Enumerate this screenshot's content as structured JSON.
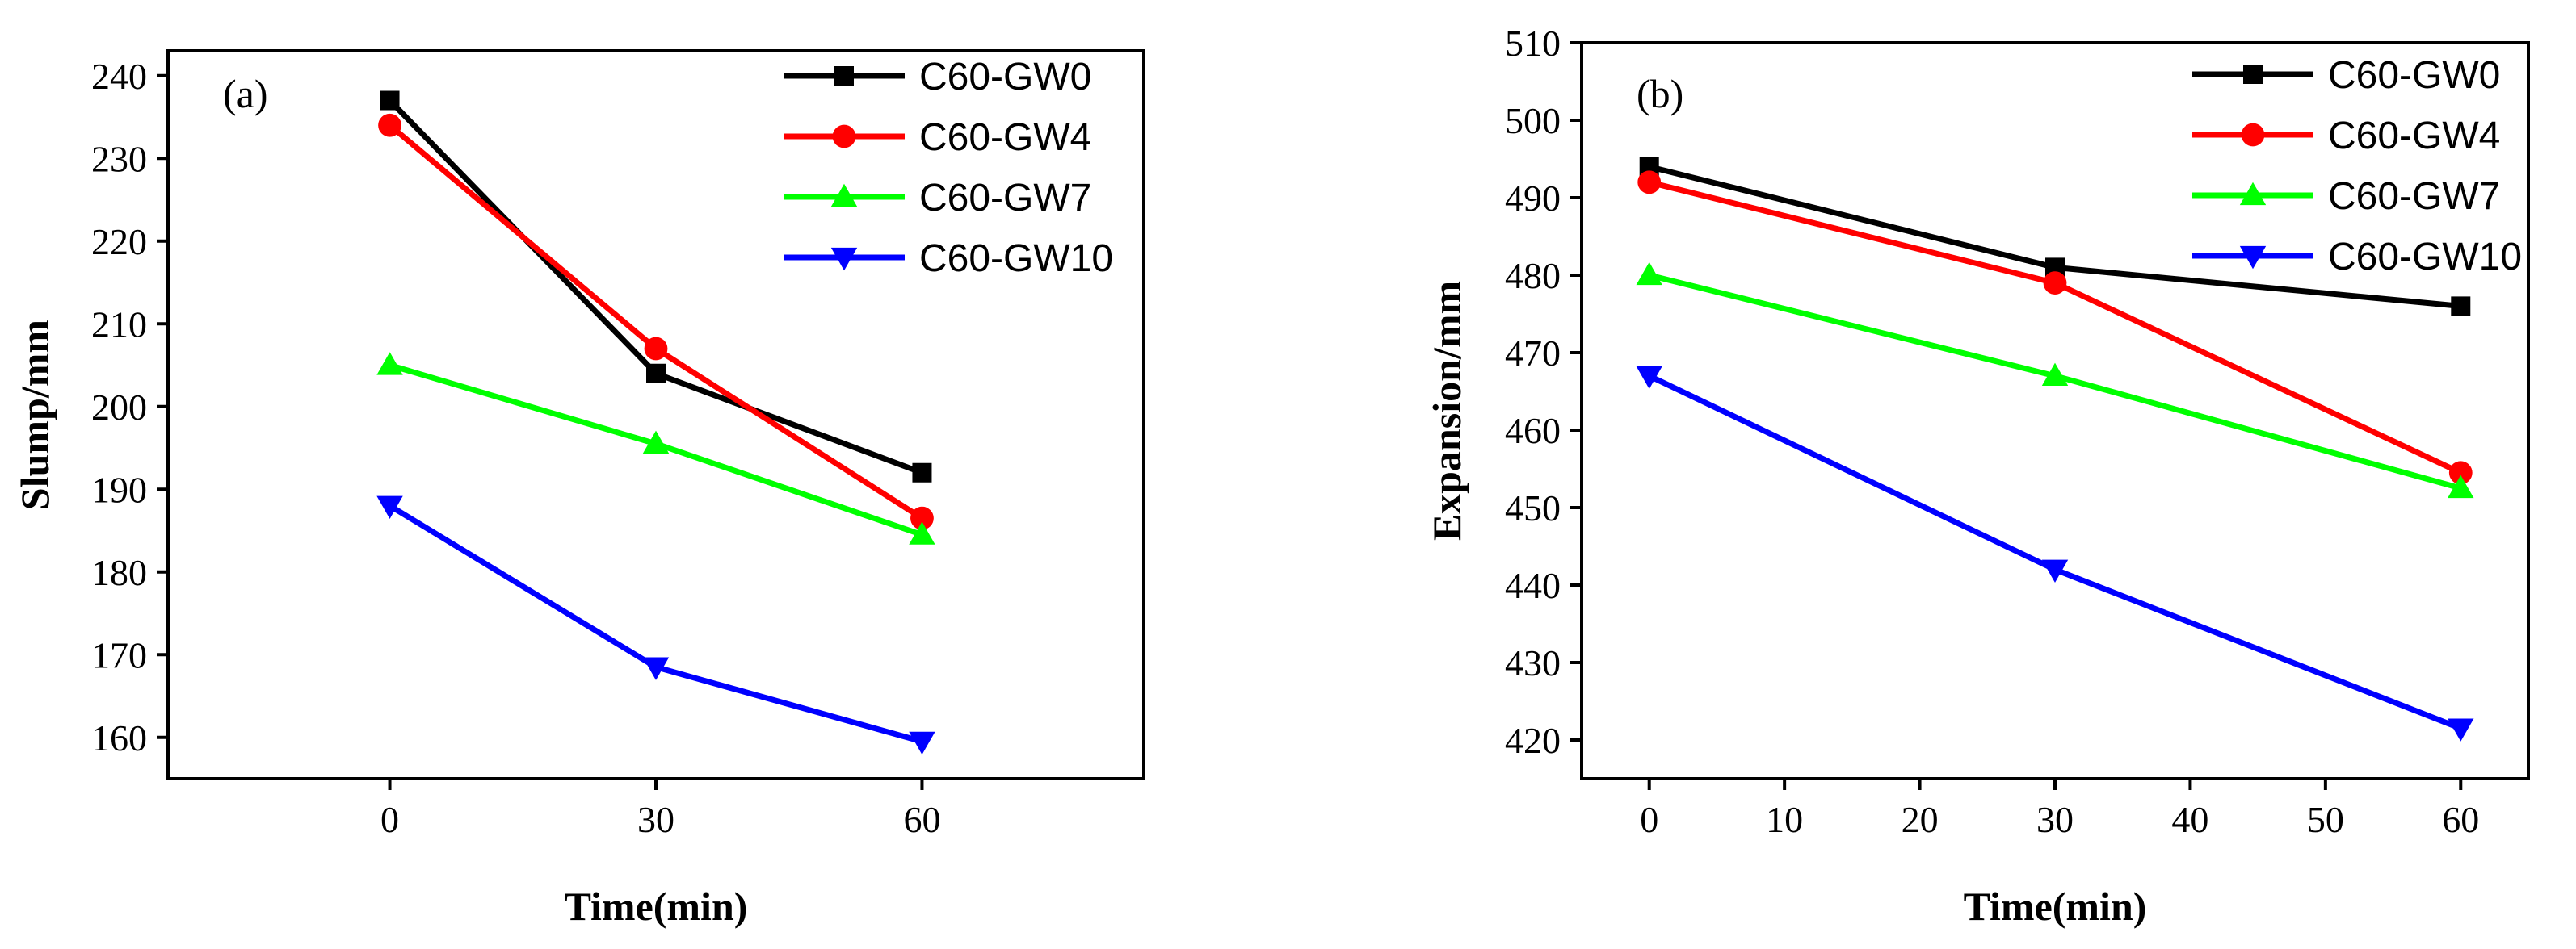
{
  "chart_data": [
    {
      "panel": "(a)",
      "type": "line",
      "xlabel": "Time(min)",
      "ylabel": "Slump/mm",
      "xlim": [
        -25,
        85
      ],
      "ylim": [
        155,
        243
      ],
      "xticks": [
        0,
        30,
        60
      ],
      "yticks": [
        160,
        170,
        180,
        190,
        200,
        210,
        220,
        230,
        240
      ],
      "legend_position": "top-right",
      "series": [
        {
          "name": "C60-GW0",
          "color": "#000000",
          "marker": "square",
          "x": [
            0,
            30,
            60
          ],
          "y": [
            237,
            204,
            192
          ]
        },
        {
          "name": "C60-GW4",
          "color": "#ff0000",
          "marker": "circle",
          "x": [
            0,
            30,
            60
          ],
          "y": [
            234,
            207,
            186.5
          ]
        },
        {
          "name": "C60-GW7",
          "color": "#00ff00",
          "marker": "triangle-up",
          "x": [
            0,
            30,
            60
          ],
          "y": [
            205,
            195.5,
            184.5
          ]
        },
        {
          "name": "C60-GW10",
          "color": "#0000ff",
          "marker": "triangle-down",
          "x": [
            0,
            30,
            60
          ],
          "y": [
            188,
            168.5,
            159.5
          ]
        }
      ]
    },
    {
      "panel": "(b)",
      "type": "line",
      "xlabel": "Time(min)",
      "ylabel": "Expansion/mm",
      "xlim": [
        -5,
        65
      ],
      "ylim": [
        415,
        510
      ],
      "xticks": [
        0,
        10,
        20,
        30,
        40,
        50,
        60
      ],
      "yticks": [
        420,
        430,
        440,
        450,
        460,
        470,
        480,
        490,
        500,
        510
      ],
      "legend_position": "top-right",
      "series": [
        {
          "name": "C60-GW0",
          "color": "#000000",
          "marker": "square",
          "x": [
            0,
            30,
            60
          ],
          "y": [
            494,
            481,
            476
          ]
        },
        {
          "name": "C60-GW4",
          "color": "#ff0000",
          "marker": "circle",
          "x": [
            0,
            30,
            60
          ],
          "y": [
            492,
            479,
            454.5
          ]
        },
        {
          "name": "C60-GW7",
          "color": "#00ff00",
          "marker": "triangle-up",
          "x": [
            0,
            30,
            60
          ],
          "y": [
            480,
            467,
            452.5
          ]
        },
        {
          "name": "C60-GW10",
          "color": "#0000ff",
          "marker": "triangle-down",
          "x": [
            0,
            30,
            60
          ],
          "y": [
            467,
            442,
            421.5
          ]
        }
      ]
    }
  ]
}
